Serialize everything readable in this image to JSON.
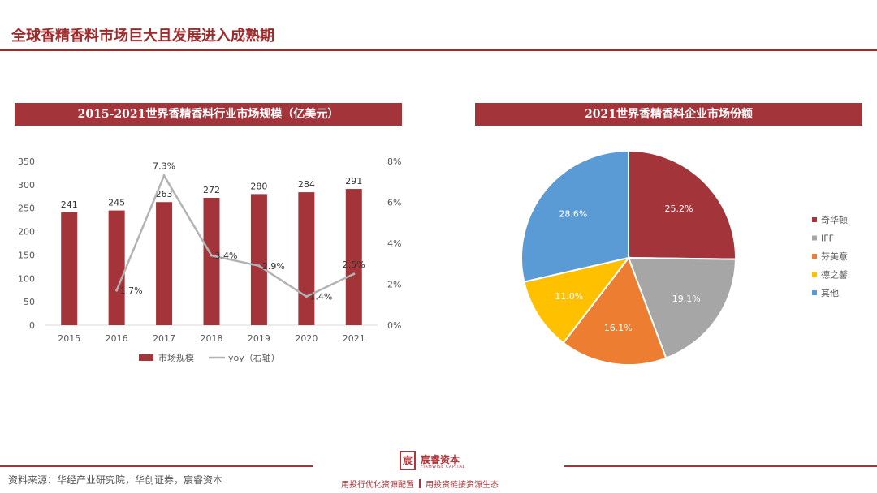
{
  "page": {
    "title": "全球香精香料市场巨大且发展进入成熟期",
    "source": "资料来源：华经产业研究院，华创证券，宸睿资本",
    "logo": {
      "mark": "宸",
      "name": "宸睿资本",
      "sub": "FIRMWISE CAPITAL"
    },
    "slogan_left": "用投行优化资源配置",
    "slogan_right": "用投资链接资源生态",
    "colors": {
      "accent": "#a3343a"
    }
  },
  "chart_data": [
    {
      "type": "bar",
      "title": "2015-2021世界香精香料行业市场规模（亿美元）",
      "categories": [
        "2015",
        "2016",
        "2017",
        "2018",
        "2019",
        "2020",
        "2021"
      ],
      "series": [
        {
          "name": "市场规模",
          "type": "bar",
          "axis": "left",
          "color": "#a3343a",
          "values": [
            241,
            245,
            263,
            272,
            280,
            284,
            291
          ]
        },
        {
          "name": "yoy（右轴）",
          "type": "line",
          "axis": "right",
          "color": "#b3b3b3",
          "values": [
            null,
            1.7,
            7.3,
            3.4,
            2.9,
            1.4,
            2.5
          ],
          "labels": [
            "",
            "1.7%",
            "7.3%",
            "3.4%",
            "2.9%",
            "1.4%",
            "2.5%"
          ]
        }
      ],
      "ylim": [
        0,
        350
      ],
      "yticks": [
        "0",
        "50",
        "100",
        "150",
        "200",
        "250",
        "300",
        "350"
      ],
      "y2lim": [
        0,
        8
      ],
      "y2ticks": [
        "0%",
        "2%",
        "4%",
        "6%",
        "8%"
      ],
      "legend": "bottom",
      "grid": false
    },
    {
      "type": "pie",
      "title": "2021世界香精香料企业市场份额",
      "slices": [
        {
          "label": "奇华顿",
          "value": 25.2,
          "text": "25.2%",
          "color": "#a3343a"
        },
        {
          "label": "IFF",
          "value": 19.1,
          "text": "19.1%",
          "color": "#a6a6a6"
        },
        {
          "label": "芬美意",
          "value": 16.1,
          "text": "16.1%",
          "color": "#ed7d31"
        },
        {
          "label": "德之馨",
          "value": 11.0,
          "text": "11.0%",
          "color": "#ffc000"
        },
        {
          "label": "其他",
          "value": 28.6,
          "text": "28.6%",
          "color": "#5b9bd5"
        }
      ],
      "legend": "right"
    }
  ]
}
